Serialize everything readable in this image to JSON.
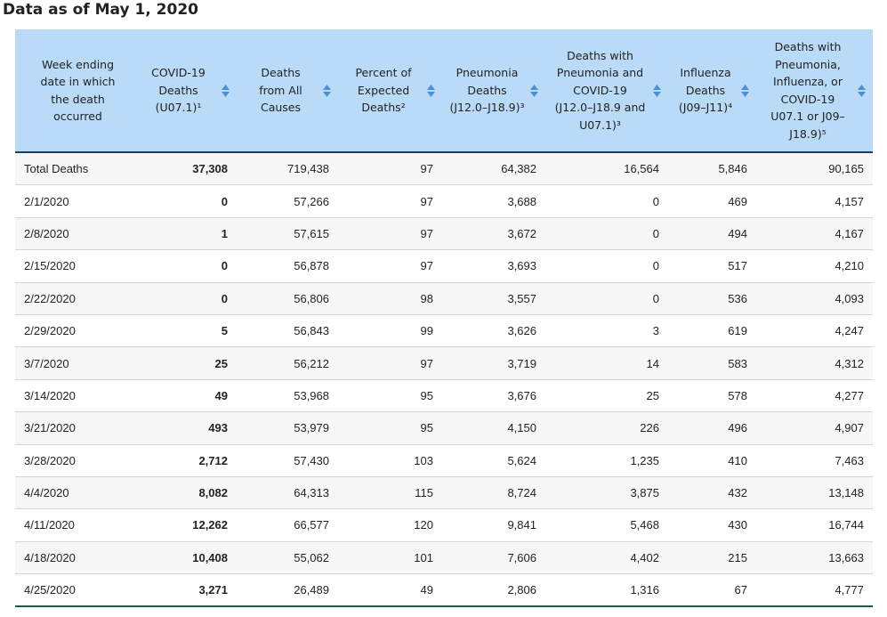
{
  "title": "Data as of May 1, 2020",
  "colors": {
    "header_bg": "#b9dbf7",
    "sort_icon": "#4a90d9",
    "row_alt": "#f7f7f7"
  },
  "columns": [
    {
      "lines": [
        "Week ending",
        "date in which",
        "the death",
        "occurred"
      ],
      "sortable": false
    },
    {
      "lines": [
        "COVID-19",
        "Deaths",
        "(U07.1)¹"
      ],
      "sortable": true
    },
    {
      "lines": [
        "Deaths",
        "from All",
        "Causes"
      ],
      "sortable": true
    },
    {
      "lines": [
        "Percent of",
        "Expected",
        "Deaths²"
      ],
      "sortable": true
    },
    {
      "lines": [
        "Pneumonia",
        "Deaths",
        "(J12.0–J18.9)³"
      ],
      "sortable": true
    },
    {
      "lines": [
        "Deaths with",
        "Pneumonia and",
        "COVID-19",
        "(J12.0–J18.9 and",
        "U07.1)³"
      ],
      "sortable": true
    },
    {
      "lines": [
        "Influenza",
        "Deaths",
        "(J09–J11)⁴"
      ],
      "sortable": true
    },
    {
      "lines": [
        "Deaths with",
        "Pneumonia,",
        "Influenza, or",
        "COVID-19",
        "U07.1 or J09–",
        "J18.9)⁵"
      ],
      "sortable": true
    }
  ],
  "sort_icon_name": "sort-updown-icon",
  "rows": [
    [
      "Total Deaths",
      "37,308",
      "719,438",
      "97",
      "64,382",
      "16,564",
      "5,846",
      "90,165"
    ],
    [
      "2/1/2020",
      "0",
      "57,266",
      "97",
      "3,688",
      "0",
      "469",
      "4,157"
    ],
    [
      "2/8/2020",
      "1",
      "57,615",
      "97",
      "3,672",
      "0",
      "494",
      "4,167"
    ],
    [
      "2/15/2020",
      "0",
      "56,878",
      "97",
      "3,693",
      "0",
      "517",
      "4,210"
    ],
    [
      "2/22/2020",
      "0",
      "56,806",
      "98",
      "3,557",
      "0",
      "536",
      "4,093"
    ],
    [
      "2/29/2020",
      "5",
      "56,843",
      "99",
      "3,626",
      "3",
      "619",
      "4,247"
    ],
    [
      "3/7/2020",
      "25",
      "56,212",
      "97",
      "3,719",
      "14",
      "583",
      "4,312"
    ],
    [
      "3/14/2020",
      "49",
      "53,968",
      "95",
      "3,676",
      "25",
      "578",
      "4,277"
    ],
    [
      "3/21/2020",
      "493",
      "53,979",
      "95",
      "4,150",
      "226",
      "496",
      "4,907"
    ],
    [
      "3/28/2020",
      "2,712",
      "57,430",
      "103",
      "5,624",
      "1,235",
      "410",
      "7,463"
    ],
    [
      "4/4/2020",
      "8,082",
      "64,313",
      "115",
      "8,724",
      "3,875",
      "432",
      "13,148"
    ],
    [
      "4/11/2020",
      "12,262",
      "66,577",
      "120",
      "9,841",
      "5,468",
      "430",
      "16,744"
    ],
    [
      "4/18/2020",
      "10,408",
      "55,062",
      "101",
      "7,606",
      "4,402",
      "215",
      "13,663"
    ],
    [
      "4/25/2020",
      "3,271",
      "26,489",
      "49",
      "2,806",
      "1,316",
      "67",
      "4,777"
    ]
  ]
}
